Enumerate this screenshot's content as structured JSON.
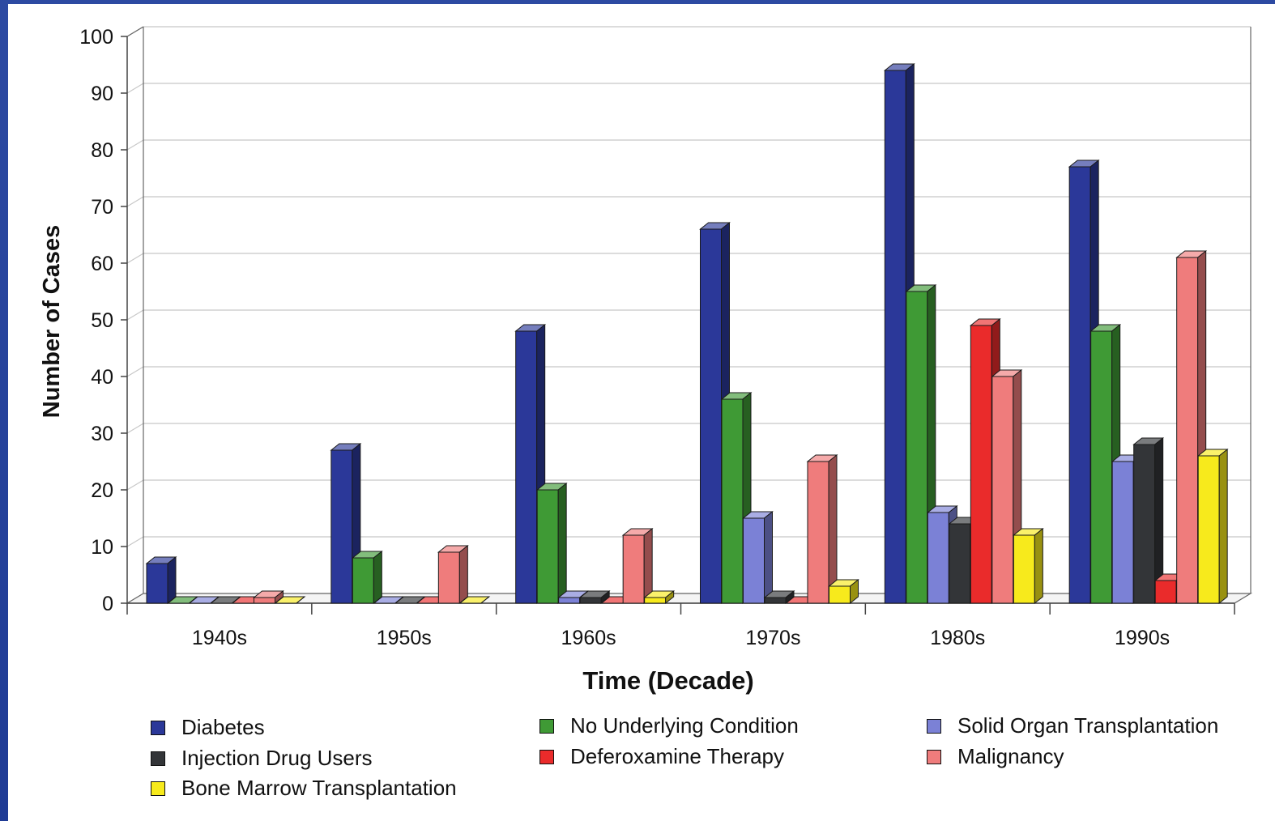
{
  "chart_data": {
    "type": "bar",
    "xlabel": "Time (Decade)",
    "ylabel": "Number of Cases",
    "ylim": [
      0,
      100
    ],
    "yticks": [
      "0",
      "10",
      "20",
      "30",
      "40",
      "50",
      "60",
      "70",
      "80",
      "90",
      "100"
    ],
    "categories": [
      "1940s",
      "1950s",
      "1960s",
      "1970s",
      "1980s",
      "1990s"
    ],
    "grid": true,
    "legend_position": "bottom",
    "series": [
      {
        "name": "Diabetes",
        "color": "#2b3899",
        "values": [
          7,
          27,
          48,
          66,
          94,
          77
        ]
      },
      {
        "name": "No Underlying Condition",
        "color": "#3f9a35",
        "values": [
          0,
          8,
          20,
          36,
          55,
          48
        ]
      },
      {
        "name": "Solid Organ Transplantation",
        "color": "#7b81d6",
        "values": [
          0,
          0,
          1,
          15,
          16,
          25
        ]
      },
      {
        "name": "Injection Drug Users",
        "color": "#333538",
        "values": [
          0,
          0,
          1,
          1,
          14,
          28
        ]
      },
      {
        "name": "Deferoxamine Therapy",
        "color": "#ea2b2b",
        "values": [
          0,
          0,
          0,
          0,
          49,
          4
        ]
      },
      {
        "name": "Malignancy",
        "color": "#ef7c7c",
        "values": [
          1,
          9,
          12,
          25,
          40,
          61
        ]
      },
      {
        "name": "Bone Marrow Transplantation",
        "color": "#f7ea1c",
        "values": [
          0,
          0,
          1,
          3,
          12,
          26
        ]
      }
    ]
  }
}
